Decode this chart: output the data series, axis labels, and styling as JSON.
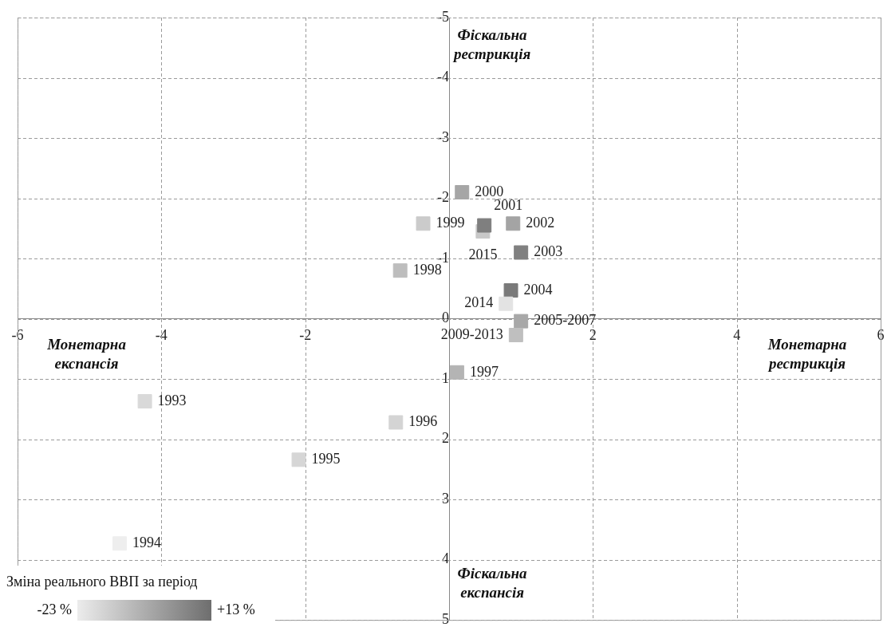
{
  "chart_data": {
    "type": "scatter",
    "xlim": [
      -6,
      6
    ],
    "xticks": [
      -6,
      -4,
      -2,
      2,
      4,
      6
    ],
    "ylim": [
      5,
      -5
    ],
    "yticks": [
      -5,
      -4,
      -3,
      -2,
      -1,
      0,
      1,
      2,
      3,
      4,
      5
    ],
    "grid": true,
    "marker": "square",
    "legend": false,
    "annotations": [
      "Фіскальна рестрикція",
      "Монетарна експансія",
      "Монетарна рестрикція",
      "Фіскальна експансія",
      "Зміна реального ВВП за період",
      "-23 %",
      "+13 %"
    ],
    "series": [
      {
        "name": "1993",
        "color": "#d9d9d9",
        "x": [
          -4.23
        ],
        "values": [
          1.37
        ]
      },
      {
        "name": "1994",
        "color": "#eeeeee",
        "x": [
          -4.58
        ],
        "values": [
          3.73
        ]
      },
      {
        "name": "1995",
        "color": "#d6d6d6",
        "x": [
          -2.09
        ],
        "values": [
          2.34
        ]
      },
      {
        "name": "1996",
        "color": "#d4d4d4",
        "x": [
          -0.74
        ],
        "values": [
          1.72
        ]
      },
      {
        "name": "1997",
        "color": "#b4b4b4",
        "x": [
          0.11
        ],
        "values": [
          0.89
        ]
      },
      {
        "name": "1998",
        "color": "#bdbdbd",
        "x": [
          -0.68
        ],
        "values": [
          -0.8
        ]
      },
      {
        "name": "1999",
        "color": "#cbcbcb",
        "x": [
          -0.36
        ],
        "values": [
          -1.58
        ]
      },
      {
        "name": "2000",
        "color": "#a6a6a6",
        "x": [
          0.18
        ],
        "values": [
          -2.1
        ]
      },
      {
        "name": "2015",
        "color": "#c8c8c8",
        "x": [
          0.47
        ],
        "values": [
          -1.45
        ]
      },
      {
        "name": "2001",
        "color": "#7f7f7f",
        "x": [
          0.49
        ],
        "values": [
          -1.55
        ]
      },
      {
        "name": "2002",
        "color": "#a4a4a4",
        "x": [
          0.89
        ],
        "values": [
          -1.58
        ]
      },
      {
        "name": "2003",
        "color": "#808080",
        "x": [
          1.0
        ],
        "values": [
          -1.1
        ]
      },
      {
        "name": "2004",
        "color": "#7a7a7a",
        "x": [
          0.86
        ],
        "values": [
          -0.47
        ]
      },
      {
        "name": "2014",
        "color": "#e3e3e3",
        "x": [
          0.79
        ],
        "values": [
          -0.25
        ]
      },
      {
        "name": "2005-2007",
        "color": "#a8a8a8",
        "x": [
          1.0
        ],
        "values": [
          0.04
        ]
      },
      {
        "name": "2009-2013",
        "color": "#bfbfbf",
        "x": [
          0.93
        ],
        "values": [
          0.27
        ]
      }
    ]
  }
}
